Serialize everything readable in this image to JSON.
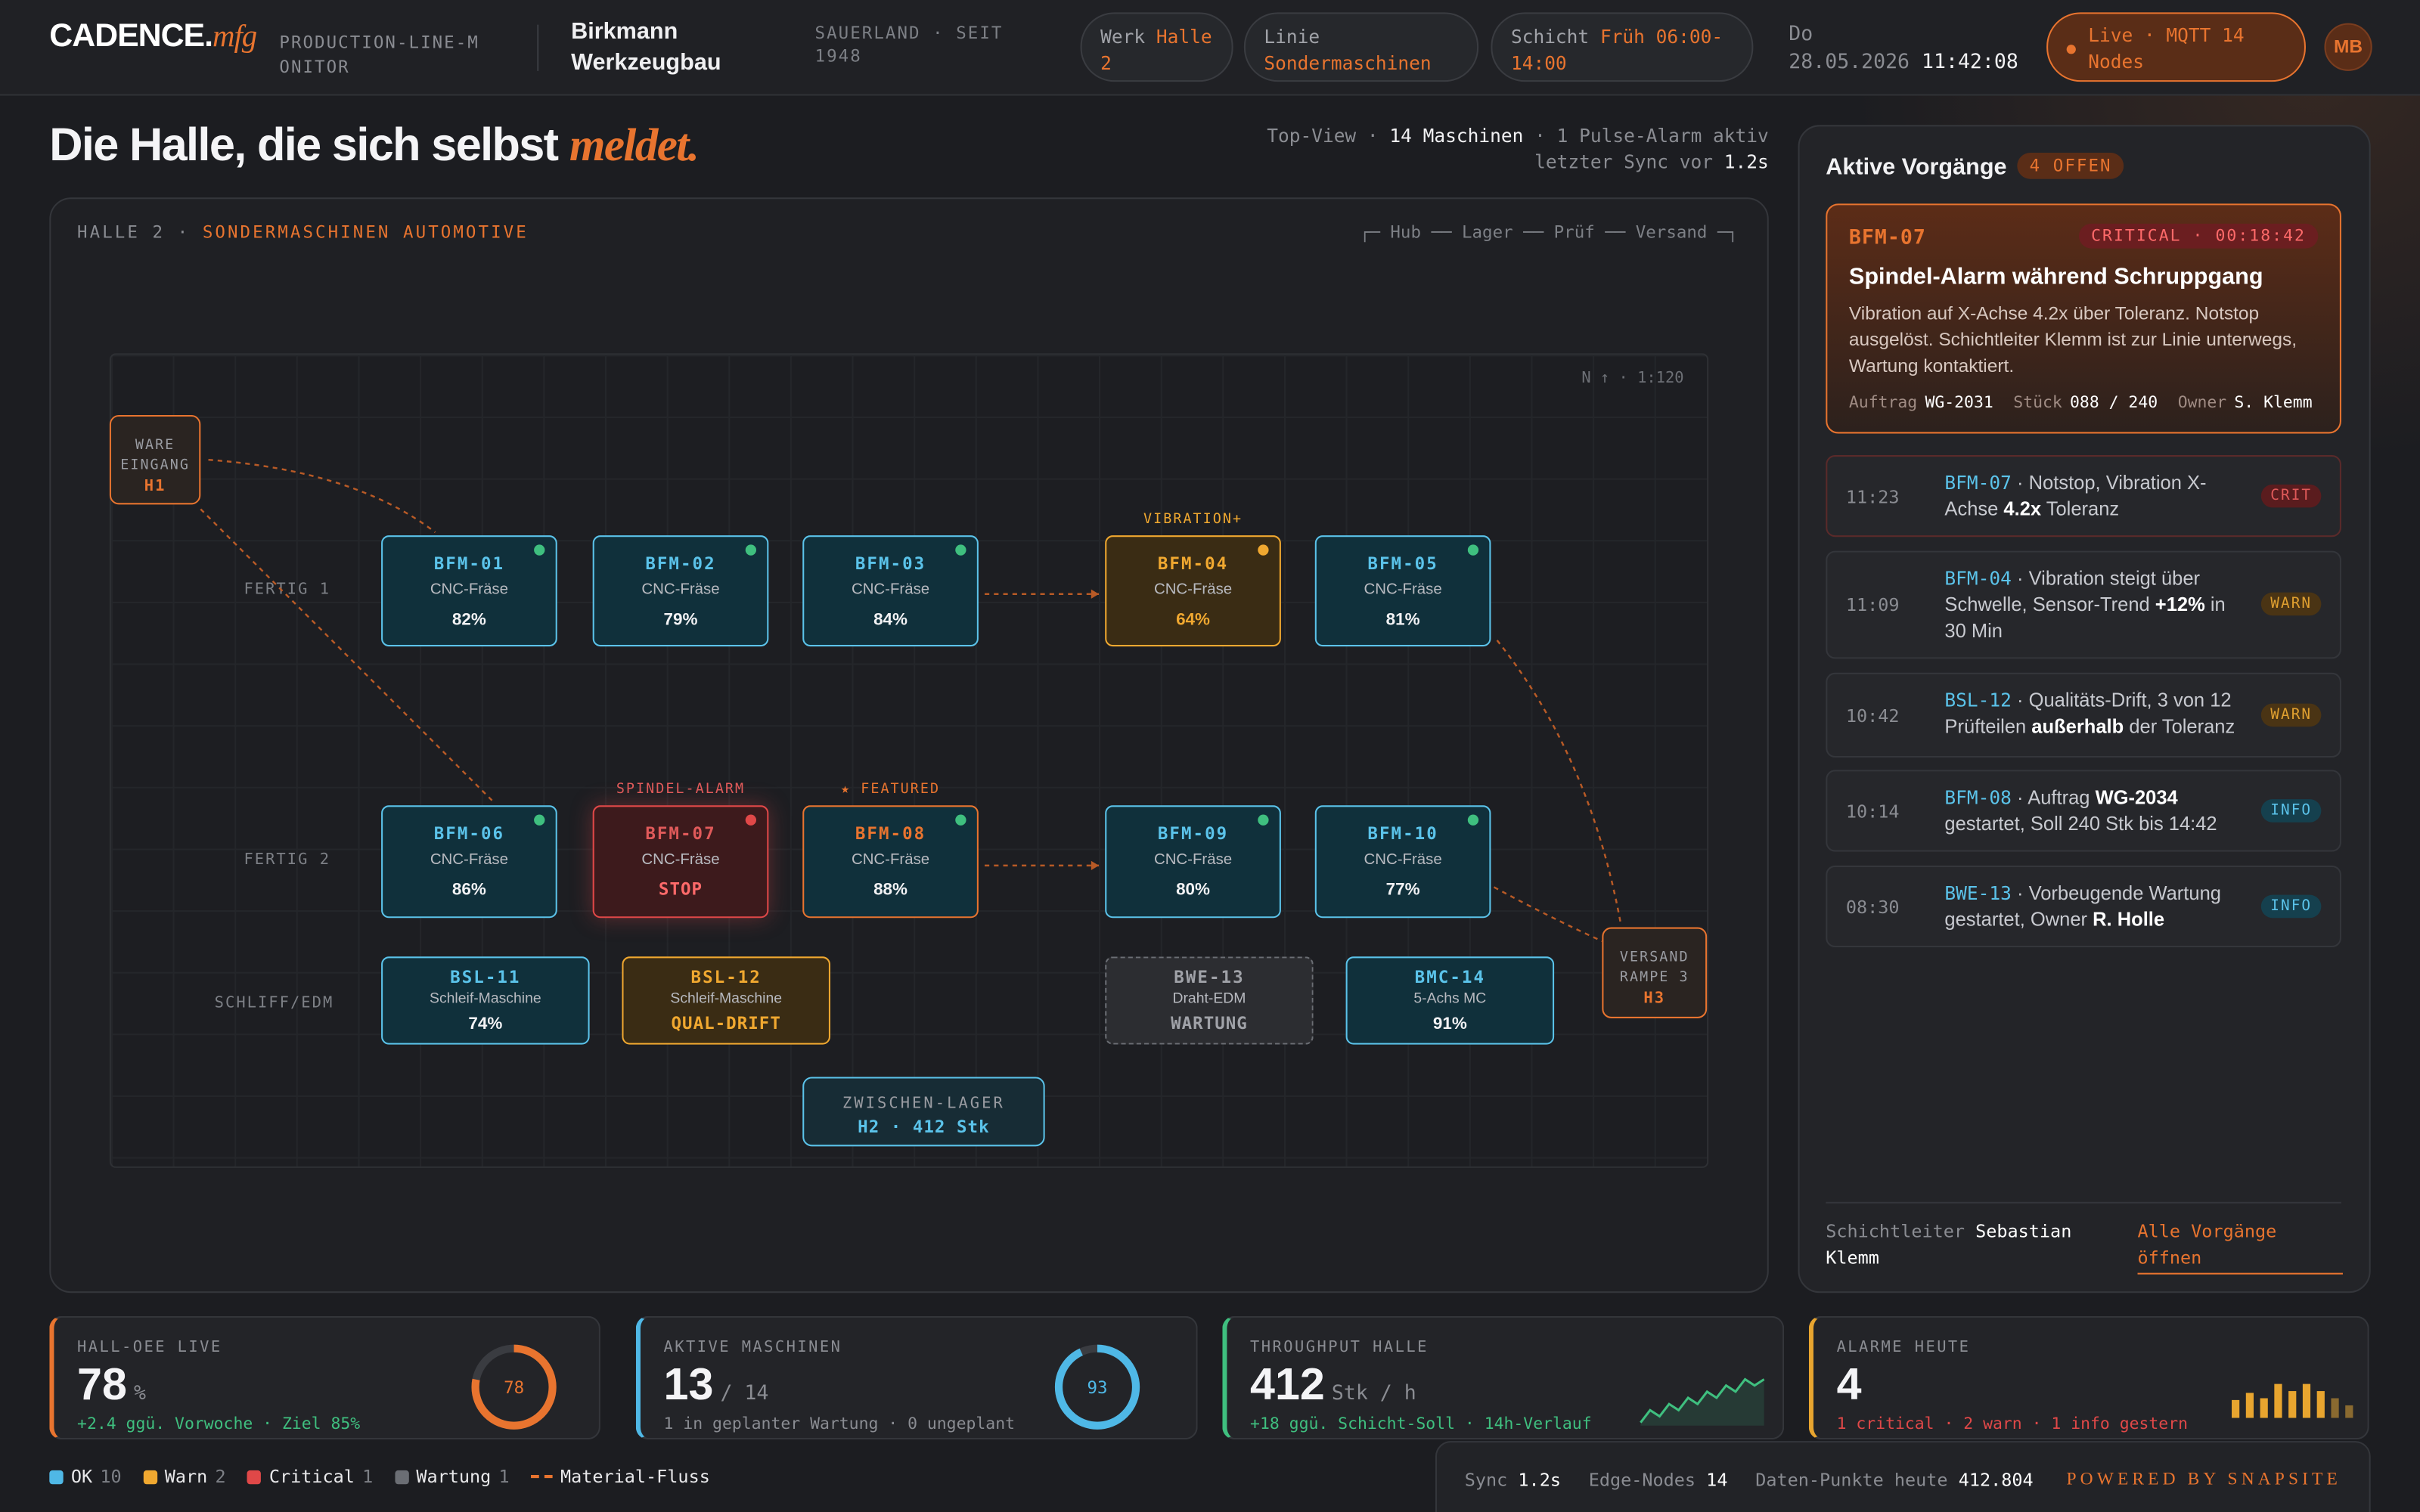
{
  "header": {
    "brand": "CADENCE.",
    "brand_suffix": "mfg",
    "app": "PRODUCTION-LINE-MONITOR",
    "company": "Birkmann Werkzeugbau",
    "region": "SAUERLAND · SEIT 1948",
    "pills": [
      {
        "label": "Werk",
        "value": "Halle 2"
      },
      {
        "label": "Linie",
        "value": "Sondermaschinen"
      },
      {
        "label": "Schicht",
        "value": "Früh 06:00-14:00"
      }
    ],
    "day": "Do",
    "date": "28.05.2026",
    "time": "11:42:08",
    "live": "Live · MQTT 14 Nodes",
    "avatar": "MB"
  },
  "hero": {
    "title": "Die Halle, die sich selbst",
    "title_em": "meldet.",
    "meta1": [
      "Top-View ·",
      "14 Maschinen",
      "· 1 Pulse-Alarm aktiv"
    ],
    "meta2": [
      "letzter Sync vor",
      "1.2s"
    ]
  },
  "floor": {
    "label": "HALLE 2 ·",
    "label_em": "SONDERMASCHINEN AUTOMOTIVE",
    "route": "┌─ Hub ── Lager ── Prüf ── Versand ─┐",
    "compass": "N ↑ · 1:120",
    "rows": [
      "FERTIG 1",
      "FERTIG 2",
      "SCHLIFF/EDM"
    ],
    "inbound": {
      "name": "WARE EINGANG",
      "code": "H1"
    },
    "outbound": {
      "name": "VERSAND RAMPE 3",
      "code": "H3"
    },
    "buffer": {
      "name": "ZWISCHEN-LAGER",
      "info": "H2 · 412 Stk"
    },
    "machines": [
      {
        "id": "BFM-01",
        "type": "CNC-Fräse",
        "value": "82%",
        "state": "ok"
      },
      {
        "id": "BFM-02",
        "type": "CNC-Fräse",
        "value": "79%",
        "state": "ok"
      },
      {
        "id": "BFM-03",
        "type": "CNC-Fräse",
        "value": "84%",
        "state": "ok"
      },
      {
        "id": "BFM-04",
        "type": "CNC-Fräse",
        "value": "64%",
        "state": "warn",
        "tag": "VIBRATION+"
      },
      {
        "id": "BFM-05",
        "type": "CNC-Fräse",
        "value": "81%",
        "state": "ok"
      },
      {
        "id": "BFM-06",
        "type": "CNC-Fräse",
        "value": "86%",
        "state": "ok"
      },
      {
        "id": "BFM-07",
        "type": "CNC-Fräse",
        "value": "STOP",
        "state": "crit",
        "tag": "SPINDEL-ALARM"
      },
      {
        "id": "BFM-08",
        "type": "CNC-Fräse",
        "value": "88%",
        "state": "featured",
        "tag": "★ FEATURED"
      },
      {
        "id": "BFM-09",
        "type": "CNC-Fräse",
        "value": "80%",
        "state": "ok"
      },
      {
        "id": "BFM-10",
        "type": "CNC-Fräse",
        "value": "77%",
        "state": "ok"
      },
      {
        "id": "BSL-11",
        "type": "Schleif-Maschine",
        "value": "74%",
        "state": "ok"
      },
      {
        "id": "BSL-12",
        "type": "Schleif-Maschine",
        "value": "QUAL-DRIFT",
        "state": "warn"
      },
      {
        "id": "BWE-13",
        "type": "Draht-EDM",
        "value": "WARTUNG",
        "state": "maint"
      },
      {
        "id": "BMC-14",
        "type": "5-Achs MC",
        "value": "91%",
        "state": "ok"
      }
    ]
  },
  "panel": {
    "title": "Aktive Vorgänge",
    "badge": "4 OFFEN",
    "featured": {
      "id": "BFM-07",
      "tag": "CRITICAL · 00:18:42",
      "title": "Spindel-Alarm während Schruppgang",
      "text": "Vibration auf X-Achse 4.2x über Toleranz. Notstop ausgelöst. Schichtleiter Klemm ist zur Linie unterwegs, Wartung kontaktiert.",
      "meta": [
        {
          "label": "Auftrag",
          "value": "WG-2031"
        },
        {
          "label": "Stück",
          "value": "088 / 240"
        },
        {
          "label": "Owner",
          "value": "S. Klemm"
        }
      ]
    },
    "events": [
      {
        "time": "11:23",
        "id": "BFM-07",
        "parts": [
          "· Notstop, Vibration X-Achse ",
          "4.2x",
          " Toleranz"
        ],
        "tag": "CRIT",
        "level": "crit"
      },
      {
        "time": "11:09",
        "id": "BFM-04",
        "parts": [
          "· Vibration steigt über Schwelle, Sensor-Trend ",
          "+12%",
          " in 30 Min"
        ],
        "tag": "WARN",
        "level": "warn"
      },
      {
        "time": "10:42",
        "id": "BSL-12",
        "parts": [
          "· Qualitäts-Drift, 3 von 12 Prüfteilen ",
          "außerhalb",
          " der Toleranz"
        ],
        "tag": "WARN",
        "level": "warn"
      },
      {
        "time": "10:14",
        "id": "BFM-08",
        "parts": [
          "· Auftrag ",
          "WG-2034",
          " gestartet, Soll 240 Stk bis 14:42"
        ],
        "tag": "INFO",
        "level": "info"
      },
      {
        "time": "08:30",
        "id": "BWE-13",
        "parts": [
          "· Vorbeugende Wartung gestartet, Owner ",
          "R. Holle"
        ],
        "tag": "INFO",
        "level": "info"
      }
    ],
    "lead_label": "Schichtleiter",
    "lead_name": "Sebastian Klemm",
    "link": "Alle Vorgänge öffnen"
  },
  "kpis": [
    {
      "label": "HALL-OEE LIVE",
      "value": 78,
      "unit": "%",
      "note": "+2.4 ggü. Vorwoche · Ziel 85%",
      "color": "#e8742f",
      "donut": 78
    },
    {
      "label": "AKTIVE MASCHINEN",
      "value": 13,
      "unit": "/ 14",
      "note": "1 in geplanter Wartung · 0 ungeplant",
      "color": "#4fb8e6",
      "donut": 93
    },
    {
      "label": "THROUGHPUT HALLE",
      "value": 412,
      "unit": "Stk / h",
      "note": "+18 ggü. Schicht-Soll · 14h-Verlauf",
      "color": "#3fbf7f",
      "spark": [
        4,
        6,
        5,
        7,
        6,
        8,
        7,
        9,
        8,
        10,
        9,
        11,
        10,
        11
      ]
    },
    {
      "label": "ALARME HEUTE",
      "value": 4,
      "unit": "",
      "note": "1 critical · 2 warn · 1 info gestern",
      "color": "#e8a52f",
      "bars": [
        10,
        14,
        11,
        19,
        15,
        19,
        15,
        11,
        7
      ]
    }
  ],
  "legend": [
    {
      "label": "OK",
      "count": 10,
      "color": "#4fb8e6"
    },
    {
      "label": "Warn",
      "count": 2,
      "color": "#f0a830"
    },
    {
      "label": "Critical",
      "count": 1,
      "color": "#e04848"
    },
    {
      "label": "Wartung",
      "count": 1,
      "color": "#6b6e74"
    }
  ],
  "flow_label": "Material-Fluss",
  "status": [
    {
      "label": "Sync",
      "value": "1.2s"
    },
    {
      "label": "Edge-Nodes",
      "value": "14"
    },
    {
      "label": "Daten-Punkte heute",
      "value": "412.804"
    }
  ],
  "powered": "POWERED BY SNAPSITE"
}
